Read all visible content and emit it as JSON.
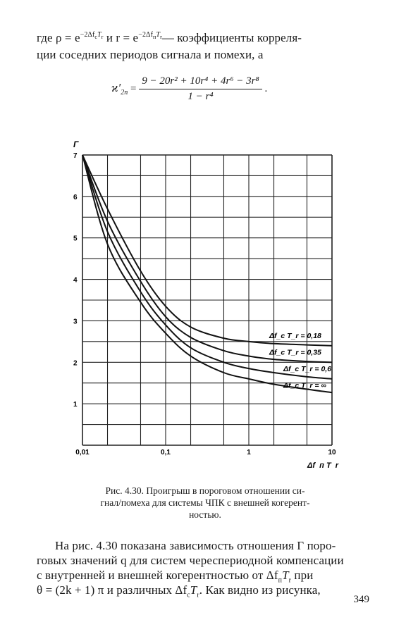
{
  "text_top": {
    "line1_a": "где ρ = e",
    "line1_exp1": "−2Δf",
    "line1_sub1": "c",
    "line1_exp1b": "T",
    "line1_sub1b": "r",
    "line1_b": "  и  r = e",
    "line1_exp2": "−2Δf",
    "line1_sub2": "п",
    "line1_exp2b": "T",
    "line1_sub2b": "r",
    "line1_c": "— коэффициенты  корреля-",
    "line2": "ции соседних периодов сигнала и помехи, а"
  },
  "formula": {
    "lhs": "ϰ′",
    "lhs_sub": "2п",
    "eq": "=",
    "numerator": "9 − 20r² + 10r⁴ + 4r⁶ − 3r⁸",
    "denominator": "1 − r⁴",
    "dot": "."
  },
  "chart_data": {
    "type": "line",
    "ylabel": "Г",
    "xlabel": "Δf_п T_r",
    "x_scale": "log",
    "xlim": [
      0.01,
      10
    ],
    "ylim": [
      0,
      7
    ],
    "x_ticks": [
      "0,01",
      "0,1",
      "1",
      "10"
    ],
    "y_ticks": [
      "1",
      "2",
      "3",
      "4",
      "5",
      "6",
      "7"
    ],
    "grid": true,
    "series": [
      {
        "name": "Δf_c T_r = 0,18",
        "x": [
          0.01,
          0.02,
          0.05,
          0.1,
          0.2,
          0.5,
          1,
          2,
          5,
          10
        ],
        "y": [
          7.0,
          5.7,
          4.2,
          3.35,
          2.85,
          2.58,
          2.5,
          2.45,
          2.42,
          2.4
        ]
      },
      {
        "name": "Δf_c T_r = 0,35",
        "x": [
          0.01,
          0.02,
          0.05,
          0.1,
          0.2,
          0.5,
          1,
          2,
          5,
          10
        ],
        "y": [
          7.0,
          5.4,
          3.95,
          3.1,
          2.6,
          2.28,
          2.15,
          2.07,
          2.02,
          2.0
        ]
      },
      {
        "name": "Δf_c T_r = 0,6",
        "x": [
          0.01,
          0.02,
          0.05,
          0.1,
          0.2,
          0.5,
          1,
          2,
          5,
          10
        ],
        "y": [
          7.0,
          5.15,
          3.7,
          2.9,
          2.35,
          2.0,
          1.85,
          1.75,
          1.65,
          1.6
        ]
      },
      {
        "name": "Δf_c T_r = ∞",
        "x": [
          0.01,
          0.02,
          0.05,
          0.1,
          0.2,
          0.5,
          1,
          2,
          5,
          10
        ],
        "y": [
          7.0,
          4.85,
          3.45,
          2.7,
          2.15,
          1.75,
          1.6,
          1.47,
          1.35,
          1.27
        ]
      }
    ],
    "legend_labels": [
      "Δf_c T_r = 0,18",
      "Δf_c T_r = 0,35",
      "Δf_c T_r = 0,6",
      "Δf_c T_r = ∞"
    ]
  },
  "caption": {
    "line1": "Рис. 4.30.  Проигрыш  в  пороговом  отношении  си-",
    "line2": "гнал/помеха для системы  ЧПК с внешней когерент-",
    "line3": "ностью."
  },
  "text_bottom": {
    "line1": "На рис. 4.30 показана зависимость отношения Г поро-",
    "line2": "говых значений q для систем череспериодной компенсации",
    "line3": "с внутренней  и  внешней когерентностью  от Δf",
    "line3_sub": "п",
    "line3_b": "T",
    "line3_sub2": "r",
    "line3_c": " при",
    "line4": "θ = (2k + 1) π  и  различных  Δf",
    "line4_sub": "c",
    "line4_b": "T",
    "line4_sub2": "r",
    "line4_c": ".  Как видно из рисунка,"
  },
  "page_number": "349"
}
